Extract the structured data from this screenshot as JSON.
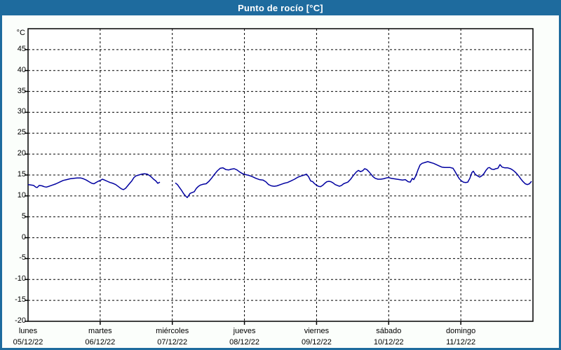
{
  "header": {
    "title": "Punto de rocío [°C]"
  },
  "colors": {
    "frame": "#1e6b9e",
    "background": "#fbfefb",
    "plot_background": "#ffffff",
    "line": "#0000a0",
    "grid": "#000000",
    "axis": "#000000",
    "title_text": "#ffffff",
    "label_text": "#000000"
  },
  "chart_data": {
    "type": "line",
    "title": "Punto de rocío [°C]",
    "ylabel": "°C",
    "ylim": [
      -20,
      50
    ],
    "ytick_step": 5,
    "yticks_labeled": [
      45,
      40,
      35,
      30,
      25,
      20,
      15,
      10,
      5,
      0,
      -5,
      -10,
      -15,
      -20
    ],
    "grid": "dashed",
    "legend_position": "none",
    "xlim_days": [
      0,
      7
    ],
    "x_categories": [
      {
        "day": "lunes",
        "date": "05/12/22"
      },
      {
        "day": "martes",
        "date": "06/12/22"
      },
      {
        "day": "miércoles",
        "date": "07/12/22"
      },
      {
        "day": "jueves",
        "date": "08/12/22"
      },
      {
        "day": "viernes",
        "date": "09/12/22"
      },
      {
        "day": "sábado",
        "date": "10/12/22"
      },
      {
        "day": "domingo",
        "date": "11/12/22"
      }
    ],
    "x_mode": "fraction of days since lunes 05/12/22 00:00",
    "series": [
      {
        "name": "Punto de rocío",
        "unit": "°C",
        "color": "#0000a0",
        "segments": [
          [
            [
              0.0,
              12.7
            ],
            [
              0.039,
              12.6
            ],
            [
              0.078,
              12.5
            ],
            [
              0.107,
              12.1
            ],
            [
              0.126,
              12.0
            ],
            [
              0.156,
              12.5
            ],
            [
              0.194,
              12.4
            ],
            [
              0.224,
              12.2
            ],
            [
              0.253,
              12.1
            ],
            [
              0.292,
              12.3
            ],
            [
              0.34,
              12.6
            ],
            [
              0.389,
              12.9
            ],
            [
              0.437,
              13.3
            ],
            [
              0.486,
              13.7
            ],
            [
              0.535,
              13.9
            ],
            [
              0.583,
              14.1
            ],
            [
              0.632,
              14.2
            ],
            [
              0.681,
              14.3
            ],
            [
              0.729,
              14.3
            ],
            [
              0.768,
              14.1
            ],
            [
              0.807,
              13.8
            ],
            [
              0.846,
              13.4
            ],
            [
              0.885,
              13.0
            ],
            [
              0.914,
              12.9
            ],
            [
              0.943,
              13.2
            ],
            [
              0.972,
              13.5
            ],
            [
              1.001,
              13.7
            ],
            [
              1.031,
              14.0
            ],
            [
              1.06,
              13.8
            ],
            [
              1.099,
              13.5
            ],
            [
              1.137,
              13.2
            ],
            [
              1.176,
              13.0
            ],
            [
              1.215,
              12.7
            ],
            [
              1.254,
              12.2
            ],
            [
              1.293,
              11.7
            ],
            [
              1.322,
              11.5
            ],
            [
              1.351,
              11.8
            ],
            [
              1.381,
              12.4
            ],
            [
              1.41,
              13.0
            ],
            [
              1.439,
              13.6
            ],
            [
              1.468,
              14.4
            ],
            [
              1.497,
              14.8
            ],
            [
              1.536,
              15.0
            ],
            [
              1.575,
              15.2
            ],
            [
              1.614,
              15.3
            ],
            [
              1.653,
              15.2
            ],
            [
              1.682,
              14.9
            ],
            [
              1.711,
              14.5
            ],
            [
              1.74,
              14.0
            ],
            [
              1.77,
              13.6
            ],
            [
              1.799,
              13.0
            ],
            [
              1.828,
              13.3
            ]
          ],
          [
            [
              2.042,
              13.1
            ],
            [
              2.071,
              12.7
            ],
            [
              2.1,
              12.0
            ],
            [
              2.129,
              11.3
            ],
            [
              2.158,
              10.5
            ],
            [
              2.188,
              9.9
            ],
            [
              2.207,
              9.6
            ],
            [
              2.227,
              10.1
            ],
            [
              2.246,
              10.6
            ],
            [
              2.275,
              10.8
            ],
            [
              2.304,
              11.0
            ],
            [
              2.333,
              11.8
            ],
            [
              2.363,
              12.3
            ],
            [
              2.392,
              12.6
            ],
            [
              2.431,
              12.8
            ],
            [
              2.469,
              12.9
            ],
            [
              2.508,
              13.5
            ],
            [
              2.547,
              14.3
            ],
            [
              2.586,
              15.2
            ],
            [
              2.625,
              16.0
            ],
            [
              2.664,
              16.6
            ],
            [
              2.703,
              16.7
            ],
            [
              2.742,
              16.3
            ],
            [
              2.781,
              16.2
            ],
            [
              2.819,
              16.4
            ],
            [
              2.858,
              16.5
            ],
            [
              2.897,
              16.2
            ],
            [
              2.936,
              15.7
            ],
            [
              2.975,
              15.3
            ],
            [
              3.014,
              15.1
            ],
            [
              3.063,
              14.9
            ],
            [
              3.111,
              14.6
            ],
            [
              3.16,
              14.2
            ],
            [
              3.208,
              13.9
            ],
            [
              3.257,
              13.8
            ],
            [
              3.296,
              13.4
            ],
            [
              3.335,
              12.7
            ],
            [
              3.374,
              12.4
            ],
            [
              3.413,
              12.3
            ],
            [
              3.451,
              12.4
            ],
            [
              3.5,
              12.7
            ],
            [
              3.549,
              13.0
            ],
            [
              3.597,
              13.2
            ],
            [
              3.646,
              13.6
            ],
            [
              3.694,
              14.0
            ],
            [
              3.743,
              14.5
            ],
            [
              3.792,
              14.8
            ],
            [
              3.831,
              15.0
            ],
            [
              3.86,
              15.2
            ],
            [
              3.889,
              14.6
            ],
            [
              3.918,
              13.6
            ],
            [
              3.947,
              13.4
            ],
            [
              3.967,
              13.0
            ],
            [
              3.996,
              12.6
            ],
            [
              4.025,
              12.3
            ],
            [
              4.054,
              12.2
            ],
            [
              4.083,
              12.5
            ],
            [
              4.113,
              13.0
            ],
            [
              4.142,
              13.4
            ],
            [
              4.171,
              13.5
            ],
            [
              4.2,
              13.4
            ],
            [
              4.229,
              13.1
            ],
            [
              4.258,
              12.7
            ],
            [
              4.288,
              12.5
            ],
            [
              4.317,
              12.3
            ],
            [
              4.346,
              12.5
            ],
            [
              4.375,
              12.9
            ],
            [
              4.404,
              13.1
            ],
            [
              4.433,
              13.3
            ],
            [
              4.472,
              14.0
            ],
            [
              4.511,
              14.9
            ],
            [
              4.55,
              15.7
            ],
            [
              4.579,
              16.1
            ],
            [
              4.608,
              15.8
            ],
            [
              4.638,
              16.0
            ],
            [
              4.667,
              16.5
            ],
            [
              4.696,
              16.3
            ],
            [
              4.725,
              15.8
            ],
            [
              4.754,
              15.2
            ],
            [
              4.783,
              14.6
            ],
            [
              4.813,
              14.2
            ],
            [
              4.851,
              14.0
            ],
            [
              4.89,
              14.0
            ],
            [
              4.929,
              14.1
            ],
            [
              4.968,
              14.3
            ],
            [
              4.997,
              14.4
            ],
            [
              5.036,
              14.2
            ],
            [
              5.075,
              14.1
            ],
            [
              5.114,
              14.0
            ],
            [
              5.153,
              13.9
            ],
            [
              5.192,
              13.8
            ],
            [
              5.231,
              13.9
            ],
            [
              5.27,
              13.4
            ],
            [
              5.299,
              13.3
            ],
            [
              5.328,
              14.2
            ],
            [
              5.347,
              13.9
            ],
            [
              5.376,
              14.8
            ],
            [
              5.406,
              16.2
            ],
            [
              5.435,
              17.4
            ],
            [
              5.464,
              17.8
            ],
            [
              5.503,
              18.0
            ],
            [
              5.542,
              18.2
            ],
            [
              5.581,
              18.0
            ],
            [
              5.62,
              17.8
            ],
            [
              5.658,
              17.5
            ],
            [
              5.697,
              17.2
            ],
            [
              5.736,
              16.9
            ],
            [
              5.775,
              16.8
            ],
            [
              5.814,
              16.8
            ],
            [
              5.853,
              16.8
            ],
            [
              5.892,
              16.6
            ],
            [
              5.921,
              15.8
            ],
            [
              5.95,
              14.9
            ],
            [
              5.979,
              14.1
            ],
            [
              6.008,
              13.6
            ],
            [
              6.037,
              13.3
            ],
            [
              6.067,
              13.2
            ],
            [
              6.096,
              13.3
            ],
            [
              6.125,
              14.2
            ],
            [
              6.154,
              15.6
            ],
            [
              6.174,
              15.9
            ],
            [
              6.203,
              15.1
            ],
            [
              6.232,
              14.8
            ],
            [
              6.261,
              14.5
            ],
            [
              6.29,
              14.8
            ],
            [
              6.319,
              15.3
            ],
            [
              6.349,
              16.1
            ],
            [
              6.378,
              16.7
            ],
            [
              6.397,
              16.8
            ],
            [
              6.426,
              16.4
            ],
            [
              6.456,
              16.3
            ],
            [
              6.485,
              16.5
            ],
            [
              6.514,
              16.6
            ],
            [
              6.543,
              17.5
            ],
            [
              6.572,
              16.9
            ],
            [
              6.611,
              16.7
            ],
            [
              6.65,
              16.7
            ],
            [
              6.689,
              16.5
            ],
            [
              6.718,
              16.2
            ],
            [
              6.747,
              15.8
            ],
            [
              6.776,
              15.3
            ],
            [
              6.806,
              14.7
            ],
            [
              6.835,
              14.0
            ],
            [
              6.864,
              13.4
            ],
            [
              6.893,
              12.9
            ],
            [
              6.922,
              12.7
            ],
            [
              6.951,
              12.9
            ],
            [
              6.981,
              13.5
            ]
          ]
        ]
      }
    ]
  }
}
